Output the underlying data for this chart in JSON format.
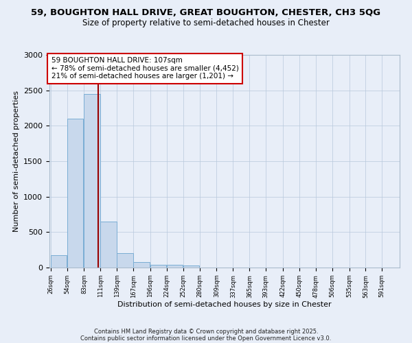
{
  "title1": "59, BOUGHTON HALL DRIVE, GREAT BOUGHTON, CHESTER, CH3 5QG",
  "title2": "Size of property relative to semi-detached houses in Chester",
  "xlabel": "Distribution of semi-detached houses by size in Chester",
  "ylabel": "Number of semi-detached properties",
  "bar_edges": [
    26,
    54,
    83,
    111,
    139,
    167,
    196,
    224,
    252,
    280,
    309,
    337,
    365,
    393,
    422,
    450,
    478,
    506,
    535,
    563,
    591
  ],
  "bar_heights": [
    175,
    2100,
    2450,
    650,
    200,
    80,
    40,
    35,
    30,
    0,
    0,
    0,
    0,
    0,
    0,
    0,
    0,
    0,
    0,
    0,
    0
  ],
  "bar_color": "#c8d8ec",
  "bar_edge_color": "#7aadd4",
  "property_size": 107,
  "vline_color": "#990000",
  "ylim": [
    0,
    3000
  ],
  "yticks": [
    0,
    500,
    1000,
    1500,
    2000,
    2500,
    3000
  ],
  "annotation_line1": "59 BOUGHTON HALL DRIVE: 107sqm",
  "annotation_line2": "← 78% of semi-detached houses are smaller (4,452)",
  "annotation_line3": "21% of semi-detached houses are larger (1,201) →",
  "annotation_box_color": "#ffffff",
  "annotation_box_edge": "#cc0000",
  "bg_color": "#e8eef8",
  "footer1": "Contains HM Land Registry data © Crown copyright and database right 2025.",
  "footer2": "Contains public sector information licensed under the Open Government Licence v3.0."
}
